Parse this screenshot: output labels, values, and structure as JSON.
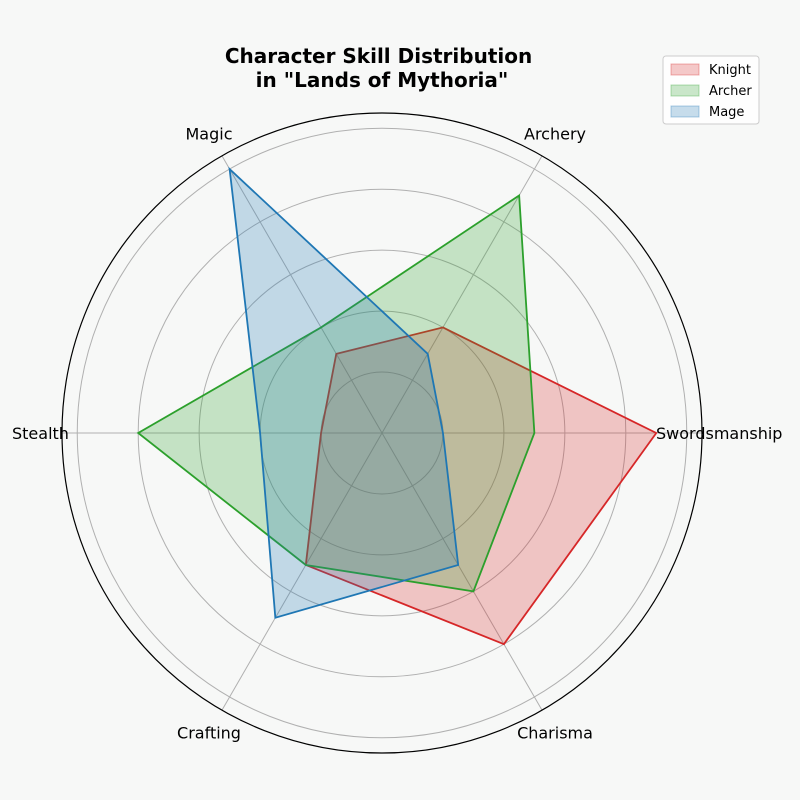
{
  "chart_data": {
    "type": "radar",
    "title": [
      "Character Skill Distribution",
      "in \"Lands of Mythoria\""
    ],
    "categories": [
      "Swordsmanship",
      "Archery",
      "Magic",
      "Stealth",
      "Crafting",
      "Charisma"
    ],
    "rlim": [
      0,
      10.5
    ],
    "rticks": [
      2,
      4,
      6,
      8,
      10
    ],
    "grid": true,
    "legend_position": "top-right",
    "series": [
      {
        "name": "Knight",
        "values": [
          9,
          4,
          3,
          2,
          5,
          8
        ],
        "color": "#d62728"
      },
      {
        "name": "Archer",
        "values": [
          5,
          9,
          4,
          8,
          5,
          6
        ],
        "color": "#2ca02c"
      },
      {
        "name": "Mage",
        "values": [
          2,
          3,
          10,
          4,
          7,
          5
        ],
        "color": "#1f77b4"
      }
    ]
  }
}
